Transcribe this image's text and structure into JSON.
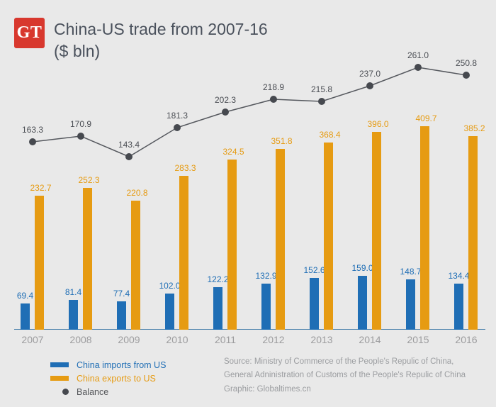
{
  "header": {
    "logo_text": "GT",
    "title_line1": "China-US trade from 2007-16",
    "title_line2": "($ bln)"
  },
  "chart_data": {
    "type": "bar",
    "subtype": "grouped-bar-with-line",
    "title": "China-US trade from 2007-16",
    "unit": "($ bln)",
    "xlabel": "",
    "ylabel": "",
    "grid": false,
    "value_labels": true,
    "legend_position": "bottom-left",
    "ylim": [
      0,
      450
    ],
    "categories": [
      "2007",
      "2008",
      "2009",
      "2010",
      "2011",
      "2012",
      "2013",
      "2014",
      "2015",
      "2016"
    ],
    "series": [
      {
        "name": "China imports from US",
        "type": "bar",
        "color": "#1f6eb5",
        "values": [
          69.4,
          81.4,
          77.4,
          102.0,
          122.2,
          132.9,
          152.6,
          159.0,
          148.7,
          134.4
        ]
      },
      {
        "name": "China exports to US",
        "type": "bar",
        "color": "#e69b12",
        "values": [
          232.7,
          252.3,
          220.8,
          283.3,
          324.5,
          351.8,
          368.4,
          396.0,
          409.7,
          385.2
        ]
      },
      {
        "name": "Balance",
        "type": "line",
        "color": "#46494f",
        "values": [
          163.3,
          170.9,
          143.4,
          181.3,
          202.3,
          218.9,
          215.8,
          237.0,
          261.0,
          250.8
        ]
      }
    ]
  },
  "legend": {
    "items": [
      {
        "label": "China imports from US",
        "color": "#1f6eb5",
        "swatch": "bar"
      },
      {
        "label": "China exports to US",
        "color": "#e69b12",
        "swatch": "bar"
      },
      {
        "label": "Balance",
        "color": "#46494f",
        "swatch": "dot",
        "text_color": "#55575a"
      }
    ]
  },
  "source": {
    "line1": "Source: Ministry of Commerce of the People's Repulic of China,",
    "line2": "General Adninistration of Customs of the People's Repulic of China",
    "line3": "Graphic: Globaltimes.cn"
  },
  "colors": {
    "background": "#e9e9e9",
    "logo_red": "#d8382e",
    "title_text": "#4a515c",
    "axis_line": "#4d82ad",
    "year_label": "#9c9c9e",
    "balance_line": "#55585e",
    "source_text": "#9b9da0"
  }
}
